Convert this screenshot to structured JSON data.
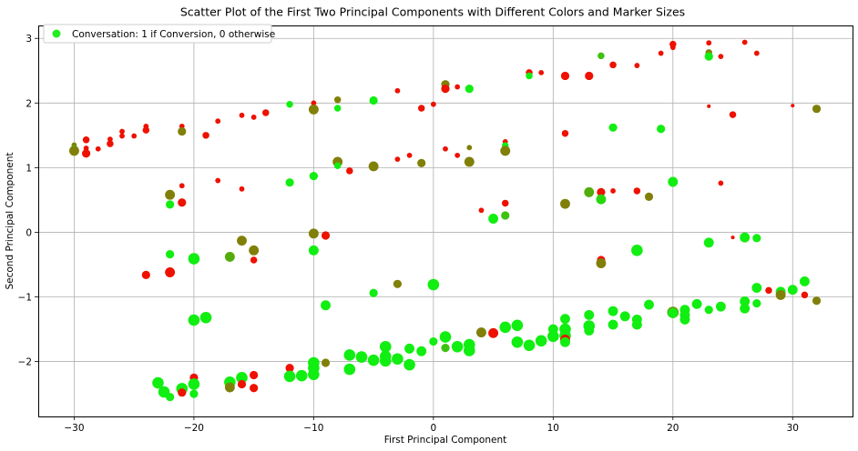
{
  "chart_data": {
    "type": "scatter",
    "title": "Scatter Plot of the First Two Principal Components with Different Colors and Marker Sizes",
    "xlabel": "First Principal Component",
    "ylabel": "Second Principal Component",
    "xlim": [
      -33,
      35
    ],
    "ylim": [
      -2.85,
      3.2
    ],
    "xticks": [
      -30,
      -20,
      -10,
      0,
      10,
      20,
      30
    ],
    "yticks": [
      -2,
      -1,
      0,
      1,
      2,
      3
    ],
    "grid": true,
    "legend": {
      "label": "Conversation: 1 if Conversion, 0 otherwise",
      "placement": "top-left",
      "marker_color": "#22ee22"
    },
    "color_scale": {
      "0": "#ee1100",
      "0.5": "#cc4400",
      "1": "#11ee11"
    },
    "points": [
      {
        "x": -30,
        "y": 1.35,
        "c": 0.5,
        "s": 2
      },
      {
        "x": -30,
        "y": 1.28,
        "c": 1,
        "s": 4
      },
      {
        "x": -30,
        "y": 1.26,
        "c": 0.5,
        "s": 5
      },
      {
        "x": -29,
        "y": 1.43,
        "c": 0,
        "s": 3
      },
      {
        "x": -29,
        "y": 1.3,
        "c": 0,
        "s": 2
      },
      {
        "x": -29,
        "y": 1.22,
        "c": 0,
        "s": 4
      },
      {
        "x": -28,
        "y": 1.29,
        "c": 0,
        "s": 2
      },
      {
        "x": -27,
        "y": 1.44,
        "c": 0,
        "s": 2
      },
      {
        "x": -27,
        "y": 1.37,
        "c": 0,
        "s": 3
      },
      {
        "x": -26,
        "y": 1.56,
        "c": 0,
        "s": 2
      },
      {
        "x": -26,
        "y": 1.49,
        "c": 0,
        "s": 2
      },
      {
        "x": -25,
        "y": 1.49,
        "c": 0,
        "s": 2
      },
      {
        "x": -24,
        "y": 1.64,
        "c": 0,
        "s": 2
      },
      {
        "x": -24,
        "y": 1.58,
        "c": 0,
        "s": 3
      },
      {
        "x": -24,
        "y": -0.66,
        "c": 0,
        "s": 4
      },
      {
        "x": -23,
        "y": -2.33,
        "c": 1,
        "s": 6
      },
      {
        "x": -22.5,
        "y": -2.47,
        "c": 1,
        "s": 6
      },
      {
        "x": -22,
        "y": 0.58,
        "c": 0.5,
        "s": 5
      },
      {
        "x": -22,
        "y": 0.43,
        "c": 1,
        "s": 4
      },
      {
        "x": -22,
        "y": -0.34,
        "c": 1,
        "s": 4
      },
      {
        "x": -22,
        "y": -0.62,
        "c": 0,
        "s": 5
      },
      {
        "x": -22,
        "y": -2.55,
        "c": 1,
        "s": 4
      },
      {
        "x": -21,
        "y": 1.64,
        "c": 0,
        "s": 2
      },
      {
        "x": -21,
        "y": 1.56,
        "c": 0.5,
        "s": 4
      },
      {
        "x": -21,
        "y": 0.72,
        "c": 0,
        "s": 2
      },
      {
        "x": -21,
        "y": 0.46,
        "c": 0,
        "s": 4
      },
      {
        "x": -21,
        "y": -2.42,
        "c": 1,
        "s": 6
      },
      {
        "x": -21,
        "y": -2.48,
        "c": 0,
        "s": 4
      },
      {
        "x": -20,
        "y": -0.41,
        "c": 1,
        "s": 6
      },
      {
        "x": -20,
        "y": -1.36,
        "c": 1,
        "s": 6
      },
      {
        "x": -20,
        "y": -2.25,
        "c": 0,
        "s": 4
      },
      {
        "x": -20,
        "y": -2.35,
        "c": 1,
        "s": 6
      },
      {
        "x": -20,
        "y": -2.5,
        "c": 1,
        "s": 4
      },
      {
        "x": -19,
        "y": 1.5,
        "c": 0,
        "s": 3
      },
      {
        "x": -19,
        "y": -1.32,
        "c": 1,
        "s": 6
      },
      {
        "x": -18,
        "y": 1.72,
        "c": 0,
        "s": 2
      },
      {
        "x": -18,
        "y": 0.8,
        "c": 0,
        "s": 2
      },
      {
        "x": -17,
        "y": -0.38,
        "c": 0.7,
        "s": 5
      },
      {
        "x": -17,
        "y": -2.32,
        "c": 1,
        "s": 6
      },
      {
        "x": -17,
        "y": -2.4,
        "c": 0.5,
        "s": 5
      },
      {
        "x": -16,
        "y": 1.81,
        "c": 0,
        "s": 2
      },
      {
        "x": -16,
        "y": 0.67,
        "c": 0,
        "s": 2
      },
      {
        "x": -16,
        "y": -0.13,
        "c": 0.5,
        "s": 5
      },
      {
        "x": -16,
        "y": -2.25,
        "c": 1,
        "s": 6
      },
      {
        "x": -16,
        "y": -2.35,
        "c": 0,
        "s": 4
      },
      {
        "x": -15,
        "y": 1.78,
        "c": 0,
        "s": 2
      },
      {
        "x": -15,
        "y": -0.28,
        "c": 0.5,
        "s": 5
      },
      {
        "x": -15,
        "y": -0.43,
        "c": 0,
        "s": 3
      },
      {
        "x": -15,
        "y": -2.21,
        "c": 0,
        "s": 4
      },
      {
        "x": -15,
        "y": -2.41,
        "c": 0,
        "s": 4
      },
      {
        "x": -14,
        "y": 1.85,
        "c": 0,
        "s": 3
      },
      {
        "x": -12,
        "y": 1.98,
        "c": 1,
        "s": 3
      },
      {
        "x": -12,
        "y": 0.77,
        "c": 1,
        "s": 4
      },
      {
        "x": -12,
        "y": -2.1,
        "c": 0,
        "s": 4
      },
      {
        "x": -12,
        "y": -2.23,
        "c": 1,
        "s": 6
      },
      {
        "x": -11,
        "y": -2.22,
        "c": 1,
        "s": 6
      },
      {
        "x": -10,
        "y": 2.0,
        "c": 0,
        "s": 2
      },
      {
        "x": -10,
        "y": 1.9,
        "c": 0.5,
        "s": 5
      },
      {
        "x": -10,
        "y": 0.87,
        "c": 1,
        "s": 4
      },
      {
        "x": -10,
        "y": -0.02,
        "c": 0.5,
        "s": 5
      },
      {
        "x": -10,
        "y": -0.28,
        "c": 1,
        "s": 5
      },
      {
        "x": -10,
        "y": -2.02,
        "c": 1,
        "s": 6
      },
      {
        "x": -10,
        "y": -2.1,
        "c": 1,
        "s": 6
      },
      {
        "x": -10,
        "y": -2.2,
        "c": 1,
        "s": 6
      },
      {
        "x": -9,
        "y": -0.05,
        "c": 0,
        "s": 4
      },
      {
        "x": -9,
        "y": -1.13,
        "c": 1,
        "s": 5
      },
      {
        "x": -9,
        "y": -2.02,
        "c": 0.5,
        "s": 4
      },
      {
        "x": -8,
        "y": 2.05,
        "c": 0.5,
        "s": 3
      },
      {
        "x": -8,
        "y": 1.92,
        "c": 1,
        "s": 3
      },
      {
        "x": -8,
        "y": 1.09,
        "c": 0.5,
        "s": 5
      },
      {
        "x": -8,
        "y": 1.03,
        "c": 1,
        "s": 3
      },
      {
        "x": -7,
        "y": 0.95,
        "c": 0,
        "s": 3
      },
      {
        "x": -7,
        "y": -1.9,
        "c": 1,
        "s": 6
      },
      {
        "x": -7,
        "y": -2.12,
        "c": 1,
        "s": 6
      },
      {
        "x": -6,
        "y": -1.93,
        "c": 1,
        "s": 6
      },
      {
        "x": -5,
        "y": 2.04,
        "c": 1,
        "s": 4
      },
      {
        "x": -5,
        "y": 1.02,
        "c": 0.5,
        "s": 5
      },
      {
        "x": -5,
        "y": -0.94,
        "c": 1,
        "s": 4
      },
      {
        "x": -5,
        "y": -1.98,
        "c": 1,
        "s": 6
      },
      {
        "x": -4,
        "y": -1.77,
        "c": 1,
        "s": 6
      },
      {
        "x": -4,
        "y": -1.92,
        "c": 1,
        "s": 6
      },
      {
        "x": -4,
        "y": -1.99,
        "c": 1,
        "s": 6
      },
      {
        "x": -3,
        "y": 2.19,
        "c": 0,
        "s": 2
      },
      {
        "x": -3,
        "y": 1.13,
        "c": 0,
        "s": 2
      },
      {
        "x": -3,
        "y": -0.8,
        "c": 0.5,
        "s": 4
      },
      {
        "x": -3,
        "y": -1.96,
        "c": 1,
        "s": 6
      },
      {
        "x": -2,
        "y": 1.19,
        "c": 0,
        "s": 2
      },
      {
        "x": -2,
        "y": -1.8,
        "c": 1,
        "s": 5
      },
      {
        "x": -2,
        "y": -2.05,
        "c": 1,
        "s": 6
      },
      {
        "x": -1,
        "y": 1.92,
        "c": 0,
        "s": 3
      },
      {
        "x": -1,
        "y": 1.07,
        "c": 0.5,
        "s": 4
      },
      {
        "x": -1,
        "y": -1.84,
        "c": 1,
        "s": 5
      },
      {
        "x": 0,
        "y": 1.98,
        "c": 0,
        "s": 2
      },
      {
        "x": 0,
        "y": -0.81,
        "c": 1,
        "s": 6
      },
      {
        "x": 0,
        "y": -1.69,
        "c": 1,
        "s": 4
      },
      {
        "x": 1,
        "y": 2.29,
        "c": 0.5,
        "s": 4
      },
      {
        "x": 1,
        "y": 2.22,
        "c": 0,
        "s": 4
      },
      {
        "x": 1,
        "y": 1.29,
        "c": 0,
        "s": 2
      },
      {
        "x": 1,
        "y": -1.62,
        "c": 1,
        "s": 6
      },
      {
        "x": 1,
        "y": -1.79,
        "c": 0.8,
        "s": 4
      },
      {
        "x": 2,
        "y": 2.25,
        "c": 0,
        "s": 2
      },
      {
        "x": 2,
        "y": 1.19,
        "c": 0,
        "s": 2
      },
      {
        "x": 2,
        "y": -1.77,
        "c": 1,
        "s": 6
      },
      {
        "x": 3,
        "y": 2.22,
        "c": 1,
        "s": 4
      },
      {
        "x": 3,
        "y": 1.31,
        "c": 0.5,
        "s": 2
      },
      {
        "x": 3,
        "y": 1.09,
        "c": 0.5,
        "s": 5
      },
      {
        "x": 3,
        "y": -1.74,
        "c": 1,
        "s": 6
      },
      {
        "x": 3,
        "y": -1.83,
        "c": 1,
        "s": 6
      },
      {
        "x": 4,
        "y": 0.34,
        "c": 0,
        "s": 2
      },
      {
        "x": 4,
        "y": -1.55,
        "c": 0.5,
        "s": 5
      },
      {
        "x": 5,
        "y": 0.21,
        "c": 1,
        "s": 5
      },
      {
        "x": 5,
        "y": -1.56,
        "c": 0,
        "s": 5
      },
      {
        "x": 6,
        "y": 1.4,
        "c": 0,
        "s": 2
      },
      {
        "x": 6,
        "y": 1.34,
        "c": 1,
        "s": 3
      },
      {
        "x": 6,
        "y": 1.26,
        "c": 0.5,
        "s": 5
      },
      {
        "x": 6,
        "y": 0.45,
        "c": 0,
        "s": 3
      },
      {
        "x": 6,
        "y": 0.26,
        "c": 0.8,
        "s": 4
      },
      {
        "x": 6,
        "y": -1.47,
        "c": 1,
        "s": 6
      },
      {
        "x": 7,
        "y": -1.44,
        "c": 1,
        "s": 6
      },
      {
        "x": 7,
        "y": -1.7,
        "c": 1,
        "s": 6
      },
      {
        "x": 8,
        "y": 2.47,
        "c": 0,
        "s": 3
      },
      {
        "x": 8,
        "y": 2.42,
        "c": 1,
        "s": 3
      },
      {
        "x": 8,
        "y": -1.75,
        "c": 1,
        "s": 6
      },
      {
        "x": 9,
        "y": 2.47,
        "c": 0,
        "s": 2
      },
      {
        "x": 9,
        "y": -1.68,
        "c": 1,
        "s": 6
      },
      {
        "x": 10,
        "y": -1.5,
        "c": 1,
        "s": 5
      },
      {
        "x": 10,
        "y": -1.61,
        "c": 1,
        "s": 6
      },
      {
        "x": 11,
        "y": 2.42,
        "c": 0,
        "s": 4
      },
      {
        "x": 11,
        "y": 1.53,
        "c": 0,
        "s": 3
      },
      {
        "x": 11,
        "y": 0.44,
        "c": 0.5,
        "s": 5
      },
      {
        "x": 11,
        "y": -1.34,
        "c": 1,
        "s": 5
      },
      {
        "x": 11,
        "y": -1.5,
        "c": 1,
        "s": 6
      },
      {
        "x": 11,
        "y": -1.6,
        "c": 1,
        "s": 6
      },
      {
        "x": 11,
        "y": -1.66,
        "c": 0,
        "s": 5
      },
      {
        "x": 11,
        "y": -1.7,
        "c": 1,
        "s": 5
      },
      {
        "x": 13,
        "y": 2.42,
        "c": 0,
        "s": 4
      },
      {
        "x": 13,
        "y": 0.62,
        "c": 0.7,
        "s": 5
      },
      {
        "x": 13,
        "y": -1.28,
        "c": 1,
        "s": 5
      },
      {
        "x": 13,
        "y": -1.45,
        "c": 1,
        "s": 6
      },
      {
        "x": 13,
        "y": -1.52,
        "c": 1,
        "s": 5
      },
      {
        "x": 14,
        "y": 2.73,
        "c": 0.8,
        "s": 3
      },
      {
        "x": 14,
        "y": 0.62,
        "c": 0,
        "s": 4
      },
      {
        "x": 14,
        "y": 0.51,
        "c": 0.9,
        "s": 5
      },
      {
        "x": 14,
        "y": -0.43,
        "c": 0,
        "s": 4
      },
      {
        "x": 14,
        "y": -0.48,
        "c": 0.5,
        "s": 5
      },
      {
        "x": 15,
        "y": 2.59,
        "c": 0,
        "s": 3
      },
      {
        "x": 15,
        "y": 1.62,
        "c": 1,
        "s": 4
      },
      {
        "x": 15,
        "y": 0.64,
        "c": 0,
        "s": 2
      },
      {
        "x": 15,
        "y": -1.22,
        "c": 1,
        "s": 5
      },
      {
        "x": 15,
        "y": -1.43,
        "c": 1,
        "s": 5
      },
      {
        "x": 16,
        "y": -1.3,
        "c": 1,
        "s": 5
      },
      {
        "x": 17,
        "y": 2.58,
        "c": 0,
        "s": 2
      },
      {
        "x": 17,
        "y": 0.64,
        "c": 0,
        "s": 3
      },
      {
        "x": 17,
        "y": -0.28,
        "c": 1,
        "s": 6
      },
      {
        "x": 17,
        "y": -1.35,
        "c": 1,
        "s": 5
      },
      {
        "x": 17,
        "y": -1.43,
        "c": 1,
        "s": 5
      },
      {
        "x": 18,
        "y": 0.55,
        "c": 0.5,
        "s": 4
      },
      {
        "x": 18,
        "y": -1.12,
        "c": 1,
        "s": 5
      },
      {
        "x": 19,
        "y": 2.77,
        "c": 0,
        "s": 2
      },
      {
        "x": 19,
        "y": 1.6,
        "c": 1,
        "s": 4
      },
      {
        "x": 20,
        "y": 2.91,
        "c": 0,
        "s": 3
      },
      {
        "x": 20,
        "y": 2.86,
        "c": 0,
        "s": 2
      },
      {
        "x": 20,
        "y": 0.78,
        "c": 1,
        "s": 5
      },
      {
        "x": 20,
        "y": -1.24,
        "c": 0.6,
        "s": 6
      },
      {
        "x": 20,
        "y": -1.25,
        "c": 1,
        "s": 5
      },
      {
        "x": 21,
        "y": -1.2,
        "c": 1,
        "s": 5
      },
      {
        "x": 21,
        "y": -1.28,
        "c": 1,
        "s": 5
      },
      {
        "x": 21,
        "y": -1.35,
        "c": 1,
        "s": 5
      },
      {
        "x": 22,
        "y": -1.11,
        "c": 1,
        "s": 5
      },
      {
        "x": 23,
        "y": 2.93,
        "c": 0,
        "s": 2
      },
      {
        "x": 23,
        "y": 2.78,
        "c": 0.5,
        "s": 3
      },
      {
        "x": 23,
        "y": 2.72,
        "c": 1,
        "s": 4
      },
      {
        "x": 23,
        "y": 1.95,
        "c": 0,
        "s": 1
      },
      {
        "x": 23,
        "y": -0.16,
        "c": 1,
        "s": 5
      },
      {
        "x": 23,
        "y": -1.2,
        "c": 1,
        "s": 4
      },
      {
        "x": 24,
        "y": 2.72,
        "c": 0,
        "s": 2
      },
      {
        "x": 24,
        "y": 0.76,
        "c": 0,
        "s": 2
      },
      {
        "x": 24,
        "y": -1.15,
        "c": 1,
        "s": 5
      },
      {
        "x": 25,
        "y": 1.82,
        "c": 0,
        "s": 3
      },
      {
        "x": 25,
        "y": -0.08,
        "c": 0,
        "s": 1
      },
      {
        "x": 26,
        "y": 2.94,
        "c": 0,
        "s": 2
      },
      {
        "x": 26,
        "y": -0.08,
        "c": 1,
        "s": 5
      },
      {
        "x": 26,
        "y": -1.07,
        "c": 1,
        "s": 5
      },
      {
        "x": 26,
        "y": -1.18,
        "c": 1,
        "s": 5
      },
      {
        "x": 27,
        "y": 2.77,
        "c": 0,
        "s": 2
      },
      {
        "x": 27,
        "y": -0.09,
        "c": 1,
        "s": 4
      },
      {
        "x": 27,
        "y": -0.86,
        "c": 1,
        "s": 5
      },
      {
        "x": 27,
        "y": -1.1,
        "c": 1,
        "s": 4
      },
      {
        "x": 28,
        "y": -0.9,
        "c": 0,
        "s": 3
      },
      {
        "x": 29,
        "y": -0.92,
        "c": 1,
        "s": 5
      },
      {
        "x": 29,
        "y": -0.97,
        "c": 0.5,
        "s": 5
      },
      {
        "x": 30,
        "y": 1.96,
        "c": 0,
        "s": 1
      },
      {
        "x": 30,
        "y": -0.89,
        "c": 1,
        "s": 5
      },
      {
        "x": 31,
        "y": -0.76,
        "c": 1,
        "s": 5
      },
      {
        "x": 31,
        "y": -0.97,
        "c": 0,
        "s": 3
      },
      {
        "x": 32,
        "y": 1.91,
        "c": 0.5,
        "s": 4
      },
      {
        "x": 32,
        "y": -1.06,
        "c": 0.5,
        "s": 4
      }
    ]
  }
}
